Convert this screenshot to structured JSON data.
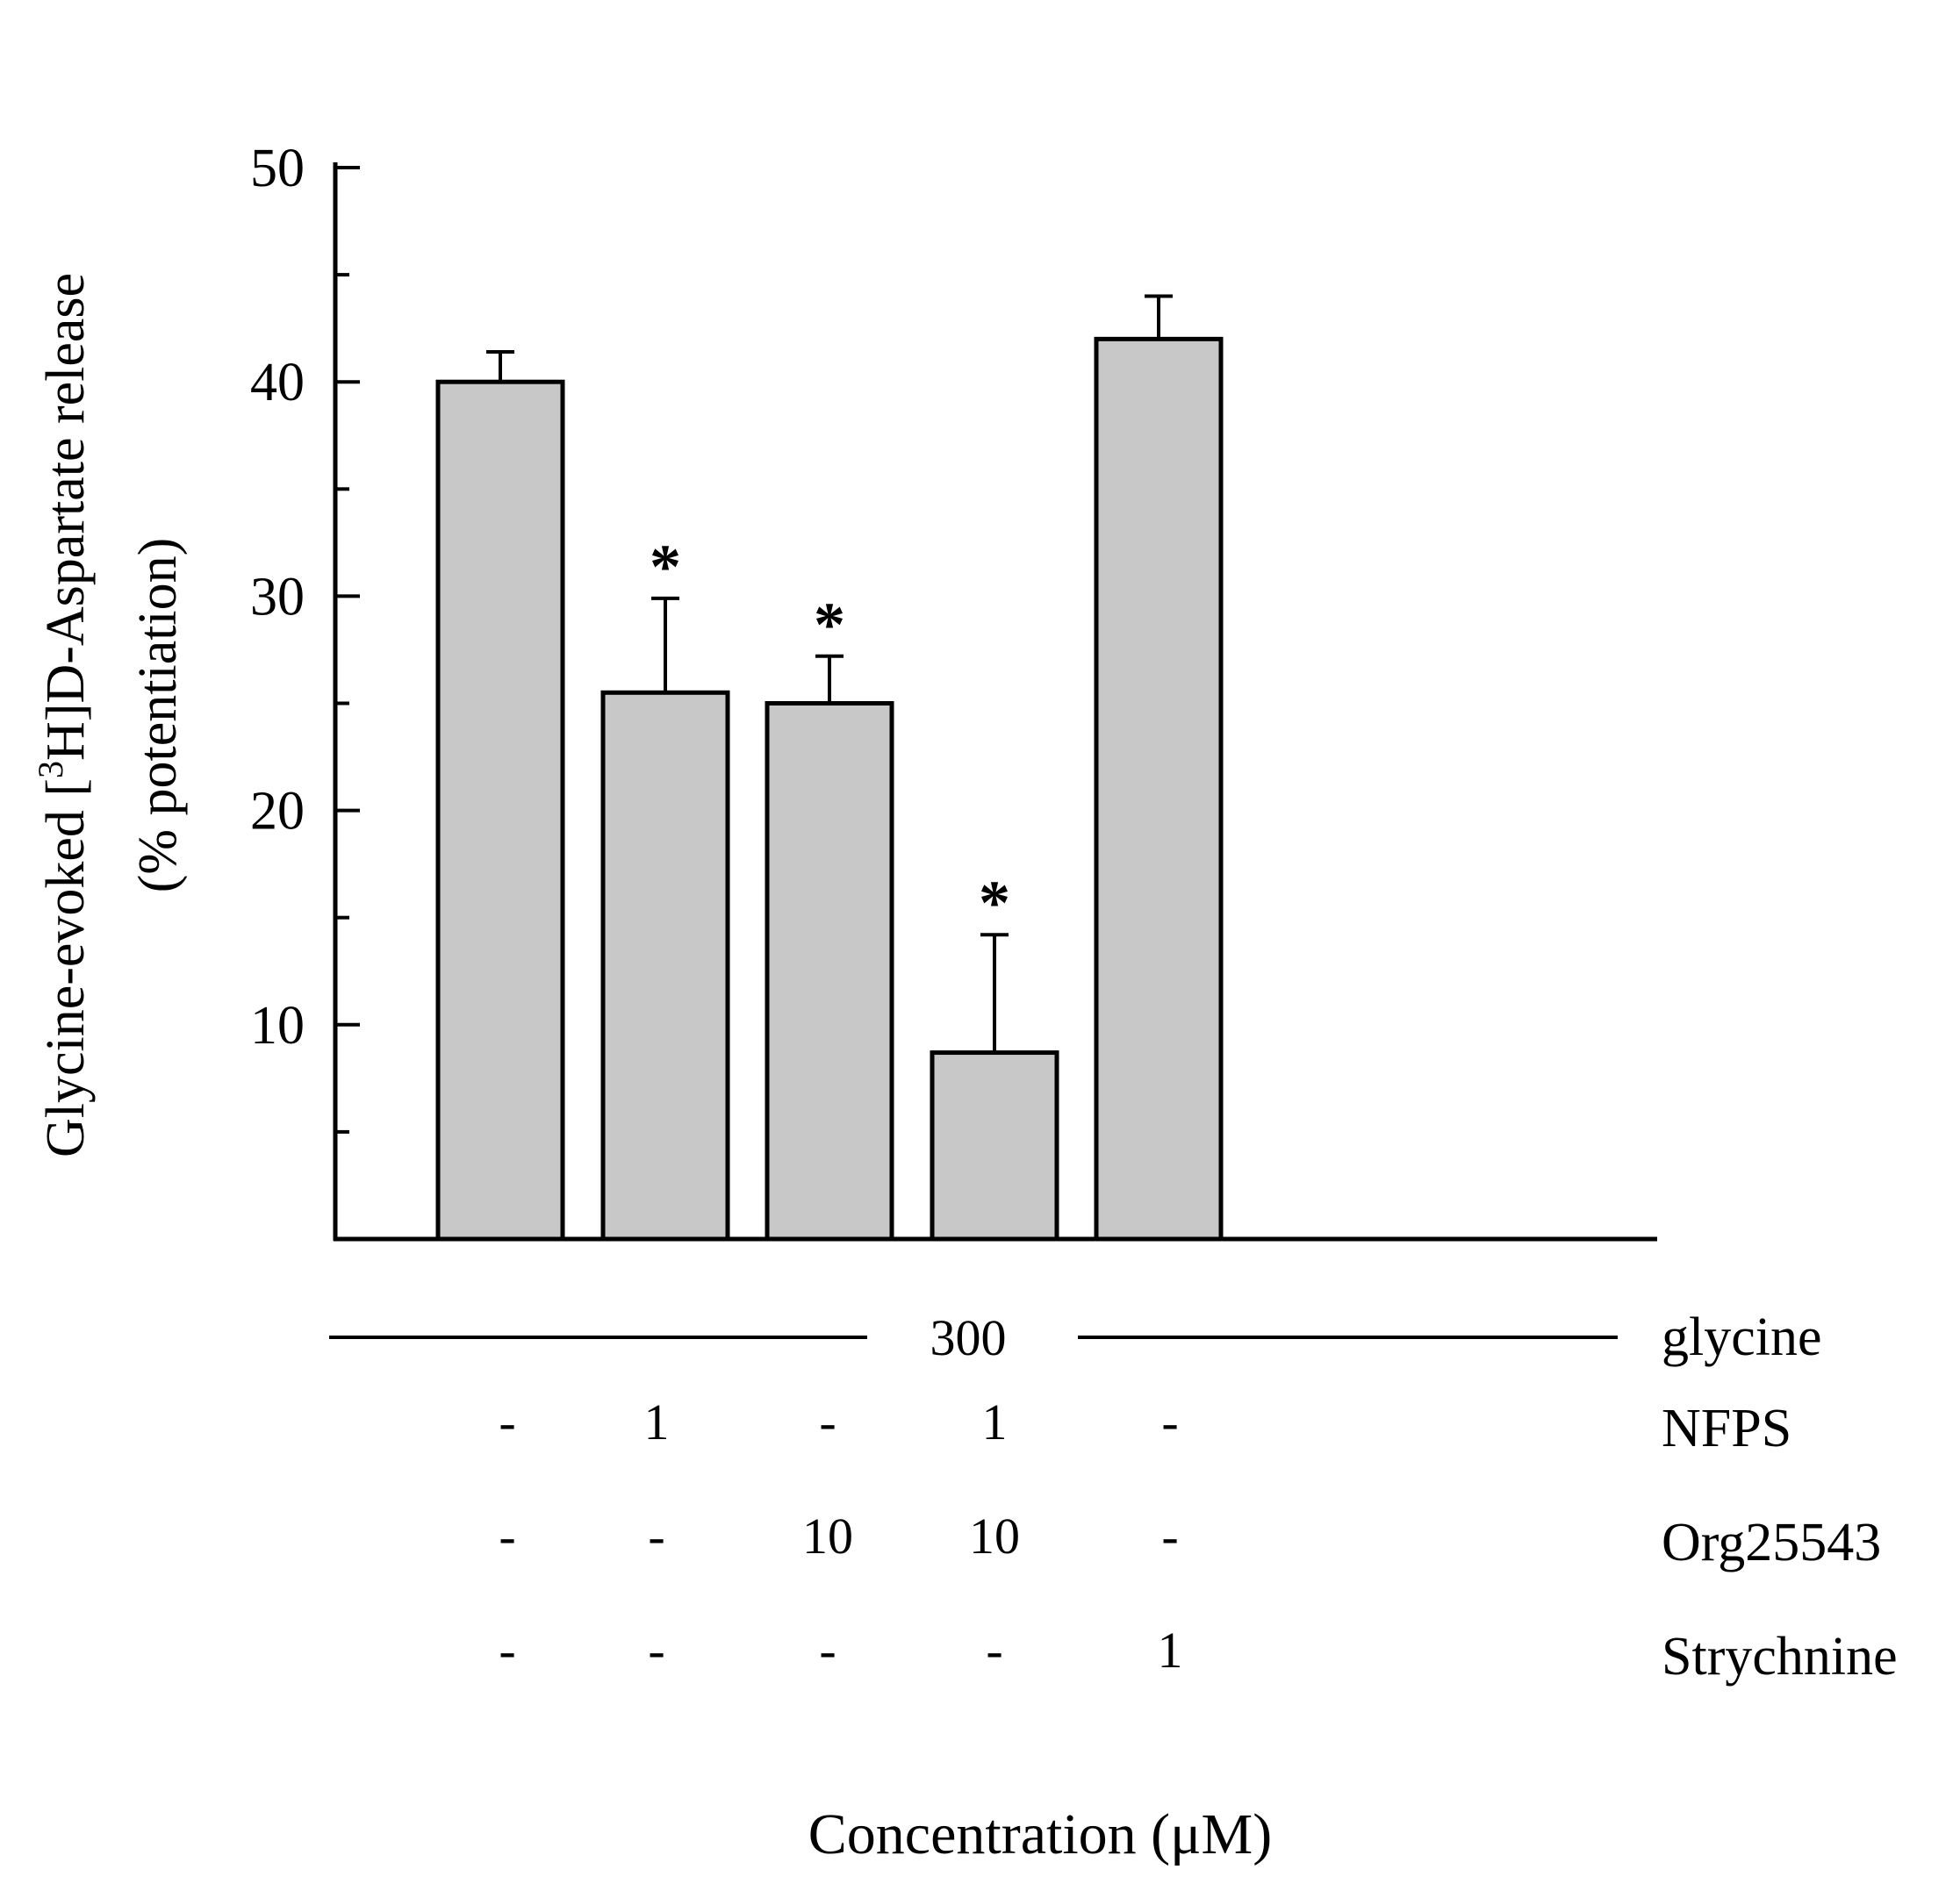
{
  "chart_data": {
    "type": "bar",
    "ylabel_line1_pre": "Glycine-evoked [",
    "ylabel_sup": "3",
    "ylabel_line1_post": "H]D-Aspartate release",
    "ylabel_line2": "(% potentiation)",
    "xlabel": "Concentration (μM)",
    "ylim": [
      0,
      50
    ],
    "yticks": [
      10,
      20,
      30,
      40,
      50
    ],
    "yminor": [
      5,
      15,
      25,
      35,
      45
    ],
    "grid": false,
    "bar_color": "#c8c8c8",
    "values": [
      40,
      25.5,
      25,
      8.7,
      42
    ],
    "errors": [
      1.4,
      4.4,
      2.2,
      5.5,
      2.0
    ],
    "significant": [
      false,
      true,
      true,
      true,
      false
    ],
    "significance_marker": "*",
    "glycine_row": {
      "label": "glycine",
      "value": "300"
    },
    "condition_rows": [
      {
        "label": "NFPS",
        "cells": [
          "-",
          "1",
          "-",
          "1",
          "-"
        ]
      },
      {
        "label": "Org25543",
        "cells": [
          "-",
          "-",
          "10",
          "10",
          "-"
        ]
      },
      {
        "label": "Strychnine",
        "cells": [
          "-",
          "-",
          "-",
          "-",
          "1"
        ]
      }
    ]
  }
}
